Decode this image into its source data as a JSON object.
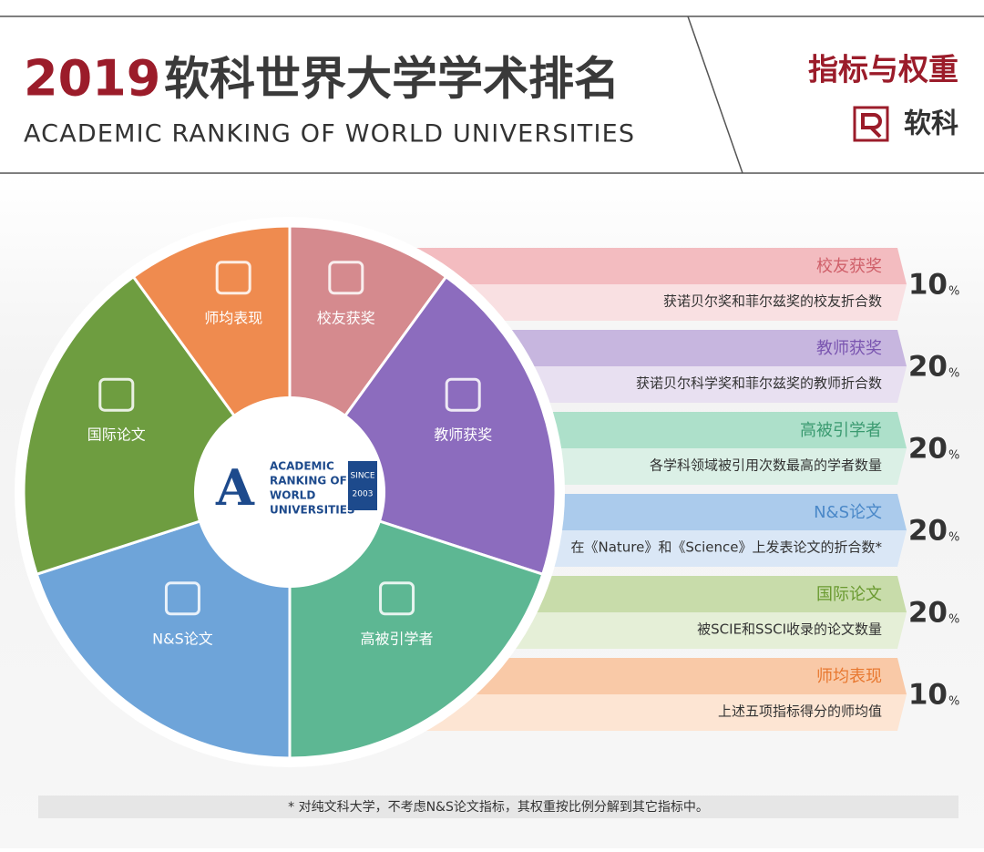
{
  "header": {
    "year": "2019",
    "title": "软科世界大学学术排名",
    "subtitle": "ACADEMIC RANKING OF WORLD UNIVERSITIES",
    "section": "指标与权重",
    "brand": "软科"
  },
  "center_logo": {
    "lines": [
      "ACADEMIC",
      "RANKING OF",
      "WORLD",
      "UNIVERSITIES"
    ],
    "badge": [
      "SINCE",
      "2003"
    ]
  },
  "indicators": [
    {
      "name": "校友获奖",
      "description": "获诺贝尔奖和菲尔兹奖的校友折合数",
      "weight": 10,
      "unit": "%",
      "color": "#d58a8e",
      "band": "#f3bcc0",
      "pale": "#f9e0e2",
      "text_color": "#cf5f69"
    },
    {
      "name": "教师获奖",
      "description": "获诺贝尔科学奖和菲尔兹奖的教师折合数",
      "weight": 20,
      "unit": "%",
      "color": "#8c6cbe",
      "band": "#c7b6df",
      "pale": "#e8e0f1",
      "text_color": "#7a55b0"
    },
    {
      "name": "高被引学者",
      "description": "各学科领域被引用次数最高的学者数量",
      "weight": 20,
      "unit": "%",
      "color": "#5db793",
      "band": "#ade0ca",
      "pale": "#dbf0e6",
      "text_color": "#3a9a70"
    },
    {
      "name": "N&S论文",
      "description": "在《Nature》和《Science》上发表论文的折合数*",
      "weight": 20,
      "unit": "%",
      "color": "#6ea4d9",
      "band": "#abcbec",
      "pale": "#dae7f6",
      "text_color": "#4a88c8"
    },
    {
      "name": "国际论文",
      "description": "被SCIE和SSCI收录的论文数量",
      "weight": 20,
      "unit": "%",
      "color": "#6e9d40",
      "band": "#c8dcaa",
      "pale": "#e5efd7",
      "text_color": "#6a9a30"
    },
    {
      "name": "师均表现",
      "description": "上述五项指标得分的师均值",
      "weight": 10,
      "unit": "%",
      "color": "#ef8b4f",
      "band": "#f9c9a7",
      "pale": "#fde5d3",
      "text_color": "#e87830"
    }
  ],
  "footnote": "* 对纯文科大学，不考虑N&S论文指标，其权重按比例分解到其它指标中。"
}
